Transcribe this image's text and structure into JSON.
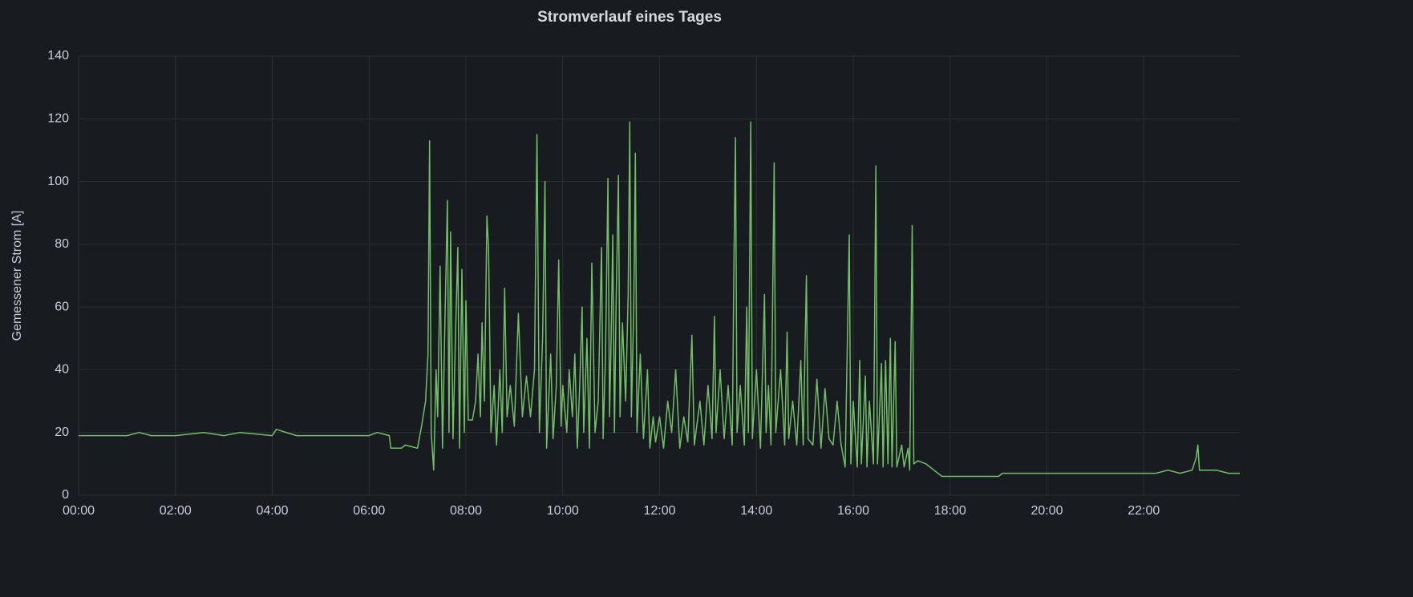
{
  "chart_data": {
    "type": "line",
    "title": "Stromverlauf eines Tages",
    "y_label": "Gemessener Strom  [A]",
    "x": [
      "00:00",
      "01:00",
      "01:15",
      "01:30",
      "02:00",
      "02:35",
      "03:00",
      "03:20",
      "04:00",
      "04:05",
      "04:30",
      "05:00",
      "05:30",
      "06:00",
      "06:10",
      "06:25",
      "06:27",
      "06:40",
      "06:45",
      "07:00",
      "07:05",
      "07:10",
      "07:13",
      "07:15",
      "07:17",
      "07:20",
      "07:23",
      "07:25",
      "07:28",
      "07:31",
      "07:34",
      "07:37",
      "07:39",
      "07:41",
      "07:44",
      "07:47",
      "07:50",
      "07:52",
      "07:55",
      "07:58",
      "08:00",
      "08:03",
      "08:08",
      "08:12",
      "08:15",
      "08:18",
      "08:20",
      "08:23",
      "08:26",
      "08:28",
      "08:31",
      "08:35",
      "08:38",
      "08:42",
      "08:45",
      "08:48",
      "08:51",
      "08:55",
      "09:00",
      "09:05",
      "09:10",
      "09:15",
      "09:20",
      "09:25",
      "09:28",
      "09:31",
      "09:35",
      "09:38",
      "09:40",
      "09:45",
      "09:48",
      "09:52",
      "09:55",
      "09:58",
      "10:00",
      "10:05",
      "10:08",
      "10:12",
      "10:15",
      "10:18",
      "10:21",
      "10:24",
      "10:26",
      "10:30",
      "10:33",
      "10:36",
      "10:40",
      "10:44",
      "10:48",
      "10:50",
      "10:53",
      "10:56",
      "10:58",
      "11:00",
      "11:02",
      "11:04",
      "11:06",
      "11:09",
      "11:11",
      "11:14",
      "11:18",
      "11:21",
      "11:23",
      "11:25",
      "11:28",
      "11:30",
      "11:32",
      "11:36",
      "11:40",
      "11:45",
      "11:48",
      "11:52",
      "11:55",
      "12:00",
      "12:05",
      "12:10",
      "12:15",
      "12:20",
      "12:25",
      "12:30",
      "12:35",
      "12:40",
      "12:43",
      "12:50",
      "12:55",
      "13:00",
      "13:05",
      "13:08",
      "13:10",
      "13:15",
      "13:20",
      "13:25",
      "13:30",
      "13:32",
      "13:34",
      "13:36",
      "13:40",
      "13:45",
      "13:48",
      "13:50",
      "13:53",
      "13:55",
      "14:00",
      "14:05",
      "14:10",
      "14:12",
      "14:15",
      "14:18",
      "14:22",
      "14:24",
      "14:30",
      "14:35",
      "14:38",
      "14:40",
      "14:45",
      "14:50",
      "14:55",
      "14:58",
      "15:02",
      "15:04",
      "15:10",
      "15:15",
      "15:20",
      "15:25",
      "15:30",
      "15:35",
      "15:40",
      "15:45",
      "15:50",
      "15:55",
      "15:57",
      "16:00",
      "16:05",
      "16:08",
      "16:10",
      "16:15",
      "16:17",
      "16:20",
      "16:25",
      "16:28",
      "16:30",
      "16:35",
      "16:37",
      "16:40",
      "16:43",
      "16:46",
      "16:48",
      "16:52",
      "16:54",
      "17:00",
      "17:03",
      "17:08",
      "17:10",
      "17:13",
      "17:15",
      "17:20",
      "17:30",
      "17:40",
      "17:50",
      "18:00",
      "18:30",
      "19:00",
      "19:05",
      "19:30",
      "20:00",
      "20:30",
      "21:00",
      "21:30",
      "22:00",
      "22:15",
      "22:30",
      "22:45",
      "23:00",
      "23:05",
      "23:07",
      "23:09",
      "23:20",
      "23:30",
      "23:45",
      "23:59"
    ],
    "series": [
      {
        "name": "Strom",
        "color": "#73bf69",
        "values": [
          19,
          19,
          20,
          19,
          19,
          20,
          19,
          20,
          19,
          21,
          19,
          19,
          19,
          19,
          20,
          19,
          15,
          15,
          16,
          15,
          22,
          30,
          45,
          113,
          20,
          8,
          40,
          25,
          73,
          15,
          55,
          94,
          20,
          84,
          18,
          50,
          79,
          15,
          72,
          20,
          62,
          24,
          24,
          30,
          45,
          25,
          55,
          30,
          89,
          79,
          20,
          35,
          16,
          40,
          20,
          66,
          25,
          35,
          22,
          58,
          25,
          38,
          25,
          40,
          115,
          20,
          50,
          100,
          15,
          45,
          18,
          35,
          75,
          22,
          35,
          20,
          40,
          25,
          45,
          15,
          35,
          60,
          20,
          50,
          15,
          74,
          20,
          30,
          79,
          18,
          45,
          101,
          25,
          50,
          83,
          20,
          60,
          102,
          25,
          55,
          30,
          64,
          119,
          25,
          60,
          109,
          20,
          45,
          18,
          40,
          15,
          25,
          17,
          25,
          15,
          30,
          20,
          40,
          15,
          25,
          17,
          51,
          16,
          30,
          16,
          35,
          18,
          57,
          20,
          40,
          18,
          35,
          16,
          71,
          114,
          20,
          35,
          16,
          60,
          20,
          119,
          18,
          40,
          15,
          64,
          20,
          35,
          16,
          106,
          20,
          40,
          16,
          52,
          18,
          30,
          16,
          43,
          16,
          70,
          18,
          16,
          37,
          15,
          34,
          18,
          16,
          30,
          16,
          9,
          83,
          10,
          30,
          9,
          43,
          10,
          38,
          9,
          30,
          10,
          105,
          10,
          42,
          9,
          43,
          10,
          50,
          9,
          49,
          9,
          16,
          9,
          15,
          8,
          86,
          10,
          11,
          10,
          8,
          6,
          6,
          6,
          6,
          7,
          7,
          7,
          7,
          7,
          7,
          7,
          7,
          8,
          7,
          8,
          12,
          16,
          8,
          8,
          8,
          7,
          7
        ]
      }
    ],
    "xlim": [
      "00:00",
      "23:59"
    ],
    "xticks": [
      "00:00",
      "02:00",
      "04:00",
      "06:00",
      "08:00",
      "10:00",
      "12:00",
      "14:00",
      "16:00",
      "18:00",
      "20:00",
      "22:00"
    ],
    "ylim": [
      0,
      140
    ],
    "yticks": [
      0,
      20,
      40,
      60,
      80,
      100,
      120,
      140
    ],
    "grid": true
  }
}
